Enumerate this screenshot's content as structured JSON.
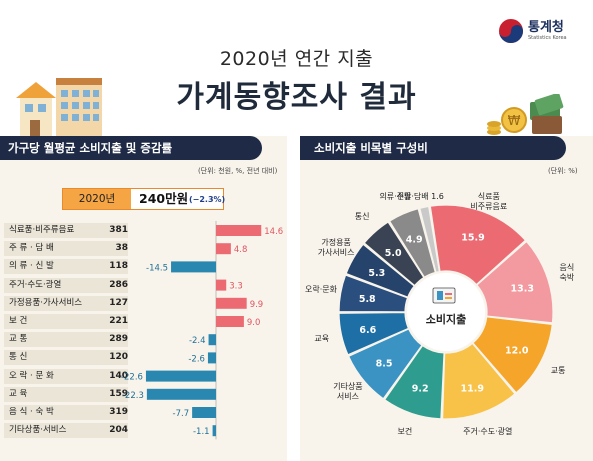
{
  "logo": {
    "name_kr": "통계청",
    "name_en": "Statistics Korea"
  },
  "header": {
    "subtitle": "2020년 연간 지출",
    "title": "가계동향조사 결과"
  },
  "left_panel": {
    "title": "가구당 월평균 소비지출 및 증감률",
    "unit": "(단위: 천원, %, 전년 대비)",
    "total": {
      "year": "2020년",
      "amount": "240만원",
      "change": "(−2.3%)"
    }
  },
  "right_panel": {
    "title": "소비지출 비목별 구성비",
    "unit": "(단위: %)",
    "center_label": "소비지출"
  },
  "colors": {
    "navy": "#1f2b46",
    "positive_bar": "#ec6b73",
    "negative_bar": "#2a87b0",
    "accent_orange": "#f5a544"
  },
  "chart_data": [
    {
      "type": "bar",
      "orientation": "horizontal",
      "categories": [
        "식료품·비주류음료",
        "주 류 · 담 배",
        "의 류 · 신 발",
        "주거·수도·광열",
        "가정용품·가사서비스",
        "보 건",
        "교 통",
        "통 신",
        "오 락 · 문 화",
        "교 육",
        "음 식 · 숙 박",
        "기타상품·서비스"
      ],
      "amounts": [
        "381",
        "38",
        "118",
        "286",
        "127",
        "221",
        "289",
        "120",
        "140",
        "159",
        "319",
        "204"
      ],
      "values": [
        14.6,
        4.8,
        -14.5,
        3.3,
        9.9,
        9.0,
        -2.4,
        -2.6,
        -22.6,
        -22.3,
        -7.7,
        -1.1
      ],
      "value_labels": [
        "14.6",
        "4.8",
        "-14.5",
        "3.3",
        "9.9",
        "9.0",
        "-2.4",
        "-2.6",
        "-22.6",
        "-22.3",
        "-7.7",
        "-1.1"
      ]
    },
    {
      "type": "pie",
      "style": "donut",
      "slices": [
        {
          "label": "식료품·비주류음료",
          "value": 15.9,
          "value_label": "15.9",
          "color": "#ec6b73"
        },
        {
          "label": "음식·숙박",
          "value": 13.3,
          "value_label": "13.3",
          "color": "#f39aa0"
        },
        {
          "label": "교통",
          "value": 12.0,
          "value_label": "12.0",
          "color": "#f5a52a"
        },
        {
          "label": "주거·수도·광열",
          "value": 11.9,
          "value_label": "11.9",
          "color": "#f7c247"
        },
        {
          "label": "보건",
          "value": 9.2,
          "value_label": "9.2",
          "color": "#2e9c8e"
        },
        {
          "label": "기타상품·서비스",
          "value": 8.5,
          "value_label": "8.5",
          "color": "#3a93c2"
        },
        {
          "label": "교육",
          "value": 6.6,
          "value_label": "6.6",
          "color": "#1d6fa6"
        },
        {
          "label": "오락·문화",
          "value": 5.8,
          "value_label": "5.8",
          "color": "#2a4f7e"
        },
        {
          "label": "가정용품·가사서비스",
          "value": 5.3,
          "value_label": "5.3",
          "color": "#26436b"
        },
        {
          "label": "통신",
          "value": 5.0,
          "value_label": "5.0",
          "color": "#3a4353"
        },
        {
          "label": "의류·신발",
          "value": 4.9,
          "value_label": "4.9",
          "color": "#8a8a8a"
        },
        {
          "label": "주류·담배",
          "value": 1.6,
          "value_label": "1.6",
          "color": "#c9c9c9"
        }
      ],
      "outer_labels": [
        {
          "lines": [
            "식료품",
            "비주류음료"
          ]
        },
        {
          "lines": [
            "음식",
            "숙박"
          ]
        },
        {
          "lines": [
            "교통"
          ]
        },
        {
          "lines": [
            "주거·수도·광열"
          ]
        },
        {
          "lines": [
            "보건"
          ]
        },
        {
          "lines": [
            "기타상품",
            "서비스"
          ]
        },
        {
          "lines": [
            "교육"
          ]
        },
        {
          "lines": [
            "오락·문화"
          ]
        },
        {
          "lines": [
            "가정용품",
            "가사서비스"
          ]
        },
        {
          "lines": [
            "통신"
          ]
        },
        {
          "lines": [
            "의류·신발"
          ]
        },
        {
          "lines": [
            "주류·담배 1.6"
          ]
        }
      ]
    }
  ]
}
